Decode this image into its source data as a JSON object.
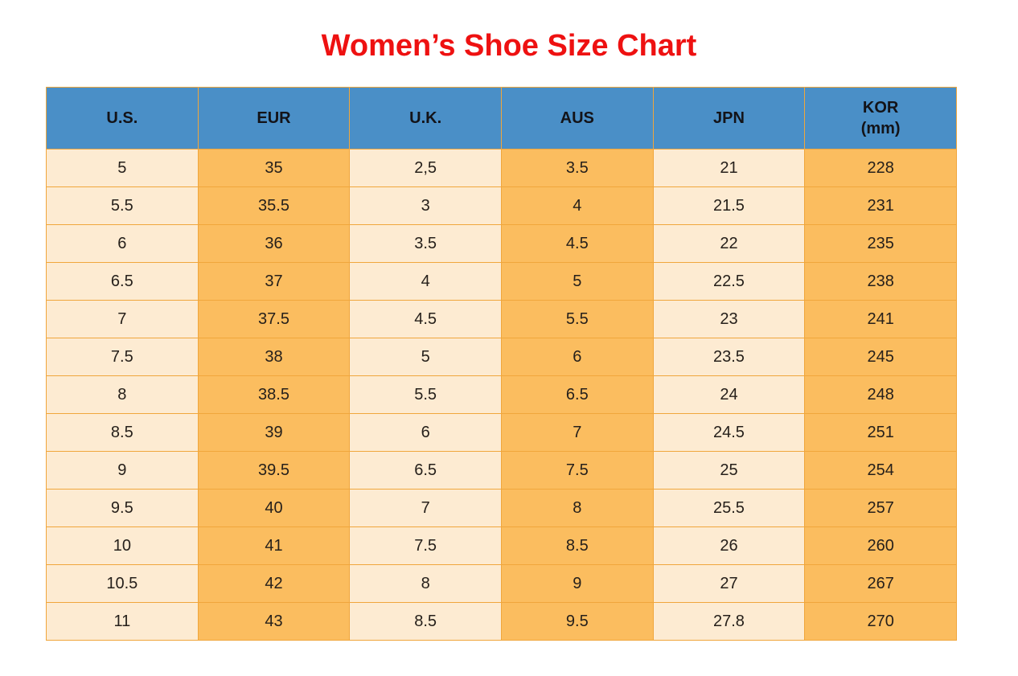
{
  "title": "Women’s Shoe Size Chart",
  "colors": {
    "title": "#EE1111",
    "header_bg": "#4A8FC7",
    "header_text": "#131318",
    "column_cream": "#FDEBD2",
    "column_orange": "#FBBD5F",
    "border": "#F0A63C",
    "cell_text": "#26201B",
    "page_bg": "#FFFFFF"
  },
  "table": {
    "headers": [
      {
        "lines": [
          "U.S."
        ]
      },
      {
        "lines": [
          "EUR"
        ]
      },
      {
        "lines": [
          "U.K."
        ]
      },
      {
        "lines": [
          "AUS"
        ]
      },
      {
        "lines": [
          "JPN"
        ]
      },
      {
        "lines": [
          "KOR",
          "(mm)"
        ]
      }
    ]
  },
  "chart_data": {
    "type": "table",
    "title": "Women’s Shoe Size Chart",
    "columns": [
      "U.S.",
      "EUR",
      "U.K.",
      "AUS",
      "JPN",
      "KOR (mm)"
    ],
    "rows": [
      [
        "5",
        "35",
        "2,5",
        "3.5",
        "21",
        "228"
      ],
      [
        "5.5",
        "35.5",
        "3",
        "4",
        "21.5",
        "231"
      ],
      [
        "6",
        "36",
        "3.5",
        "4.5",
        "22",
        "235"
      ],
      [
        "6.5",
        "37",
        "4",
        "5",
        "22.5",
        "238"
      ],
      [
        "7",
        "37.5",
        "4.5",
        "5.5",
        "23",
        "241"
      ],
      [
        "7.5",
        "38",
        "5",
        "6",
        "23.5",
        "245"
      ],
      [
        "8",
        "38.5",
        "5.5",
        "6.5",
        "24",
        "248"
      ],
      [
        "8.5",
        "39",
        "6",
        "7",
        "24.5",
        "251"
      ],
      [
        "9",
        "39.5",
        "6.5",
        "7.5",
        "25",
        "254"
      ],
      [
        "9.5",
        "40",
        "7",
        "8",
        "25.5",
        "257"
      ],
      [
        "10",
        "41",
        "7.5",
        "8.5",
        "26",
        "260"
      ],
      [
        "10.5",
        "42",
        "8",
        "9",
        "27",
        "267"
      ],
      [
        "11",
        "43",
        "8.5",
        "9.5",
        "27.8",
        "270"
      ]
    ]
  }
}
